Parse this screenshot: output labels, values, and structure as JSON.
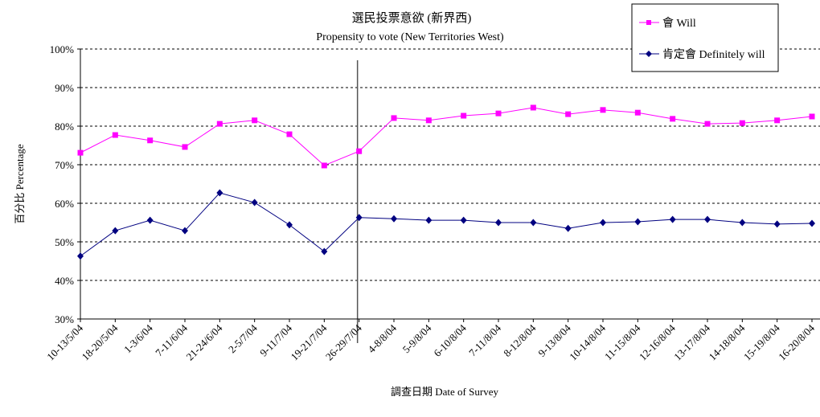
{
  "chart_data": {
    "type": "line",
    "title": "選民投票意欲 (新界西)",
    "subtitle": "Propensity to vote (New Territories West)",
    "xlabel": "調查日期 Date of Survey",
    "ylabel": "百分比 Percentage",
    "ylim": [
      30,
      100
    ],
    "yticks": [
      "30%",
      "40%",
      "50%",
      "60%",
      "70%",
      "80%",
      "90%",
      "100%"
    ],
    "grid": "horizontal dashed",
    "legend_position": "top-right",
    "categories": [
      "10-13/5/04",
      "18-20/5/04",
      "1-3/6/04",
      "7-11/6/04",
      "21-24/6/04",
      "2-5/7/04",
      "9-11/7/04",
      "19-21/7/04",
      "26-29/7/04",
      "4-8/8/04",
      "5-9/8/04",
      "6-10/8/04",
      "7-11/8/04",
      "8-12/8/04",
      "9-13/8/04",
      "10-14/8/04",
      "11-15/8/04",
      "12-16/8/04",
      "13-17/8/04",
      "14-18/8/04",
      "15-19/8/04",
      "16-20/8/04"
    ],
    "vertical_marker_after": "26-29/7/04",
    "series": [
      {
        "name": "會 Will",
        "color": "#ff00ff",
        "marker": "square",
        "values": [
          73.1,
          77.7,
          76.3,
          74.6,
          80.6,
          81.5,
          77.9,
          69.8,
          73.5,
          82.1,
          81.5,
          82.7,
          83.3,
          84.8,
          83.1,
          84.2,
          83.5,
          81.9,
          80.6,
          80.8,
          81.5,
          82.5
        ]
      },
      {
        "name": "肯定會 Definitely will",
        "color": "#000080",
        "marker": "diamond",
        "values": [
          46.3,
          52.9,
          55.6,
          52.9,
          62.7,
          60.2,
          54.4,
          47.5,
          56.3,
          56.0,
          55.6,
          55.6,
          55.0,
          55.0,
          53.5,
          55.0,
          55.2,
          55.8,
          55.8,
          55.0,
          54.6,
          54.8
        ]
      }
    ]
  }
}
